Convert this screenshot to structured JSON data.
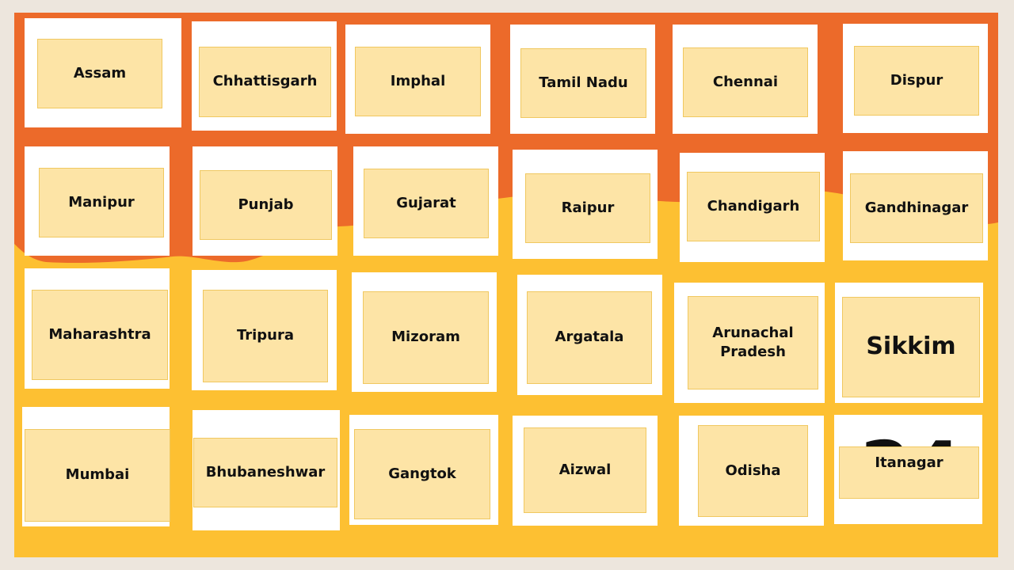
{
  "colors": {
    "page_background": "#ede6dd",
    "slide_yellow": "#fdc032",
    "slide_orange": "#ec6a2a",
    "card_white": "#ffffff",
    "tile_fill": "#fde4a6",
    "tile_border": "#f0c860",
    "text": "#111111"
  },
  "tiles": {
    "assam": "Assam",
    "chhattisgarh": "Chhattisgarh",
    "imphal": "Imphal",
    "tamil_nadu": "Tamil Nadu",
    "chennai": "Chennai",
    "dispur": "Dispur",
    "manipur": "Manipur",
    "punjab": "Punjab",
    "gujarat": "Gujarat",
    "raipur": "Raipur",
    "chandigarh": "Chandigarh",
    "gandhinagar": "Gandhinagar",
    "maharashtra": "Maharashtra",
    "tripura": "Tripura",
    "mizoram": "Mizoram",
    "argatala": "Argatala",
    "arunachal_line1": "Arunachal",
    "arunachal_line2": "Pradesh",
    "sikkim": "Sikkim",
    "mumbai": "Mumbai",
    "bhubaneshwar": "Bhubaneshwar",
    "gangtok": "Gangtok",
    "aizwal": "Aizwal",
    "odisha": "Odisha",
    "itanagar": "Itanagar"
  },
  "hidden_card_number": "24"
}
